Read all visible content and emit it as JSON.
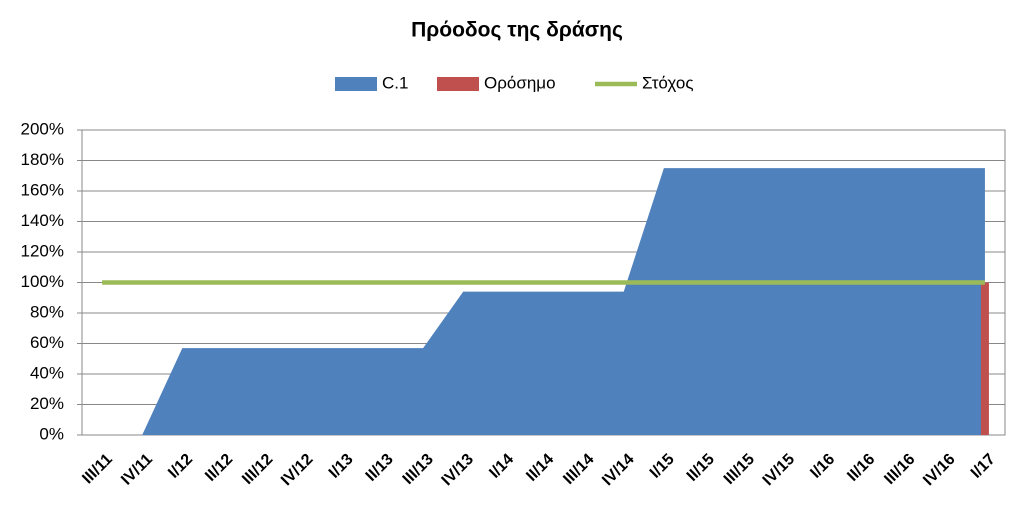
{
  "chart_data": {
    "type": "area",
    "title": "Πρόοδος της δράσης",
    "categories": [
      "III/11",
      "IV/11",
      "I/12",
      "II/12",
      "III/12",
      "IV/12",
      "I/13",
      "II/13",
      "III/13",
      "IV/13",
      "I/14",
      "II/14",
      "III/14",
      "IV/14",
      "I/15",
      "II/15",
      "III/15",
      "IV/15",
      "I/16",
      "II/16",
      "III/16",
      "IV/16",
      "I/17"
    ],
    "series": [
      {
        "name": "C.1",
        "type": "area",
        "color": "#4f81bd",
        "values": [
          0,
          0,
          57,
          57,
          57,
          57,
          57,
          57,
          57,
          94,
          94,
          94,
          94,
          94,
          175,
          175,
          175,
          175,
          175,
          175,
          175,
          175,
          175
        ]
      },
      {
        "name": "Ορόσημο",
        "type": "bar",
        "color": "#c0504d",
        "values": [
          null,
          null,
          null,
          null,
          null,
          null,
          null,
          null,
          null,
          null,
          null,
          null,
          null,
          null,
          null,
          null,
          null,
          null,
          null,
          null,
          null,
          null,
          100
        ]
      },
      {
        "name": "Στόχος",
        "type": "line",
        "color": "#9bbb59",
        "values": [
          100,
          100,
          100,
          100,
          100,
          100,
          100,
          100,
          100,
          100,
          100,
          100,
          100,
          100,
          100,
          100,
          100,
          100,
          100,
          100,
          100,
          100,
          100
        ]
      }
    ],
    "ylim": [
      0,
      200
    ],
    "yticks": [
      {
        "value": 0,
        "label": "0%"
      },
      {
        "value": 20,
        "label": "20%"
      },
      {
        "value": 40,
        "label": "40%"
      },
      {
        "value": 60,
        "label": "60%"
      },
      {
        "value": 80,
        "label": "80%"
      },
      {
        "value": 100,
        "label": "100%"
      },
      {
        "value": 120,
        "label": "120%"
      },
      {
        "value": 140,
        "label": "140%"
      },
      {
        "value": 160,
        "label": "160%"
      },
      {
        "value": 180,
        "label": "180%"
      },
      {
        "value": 200,
        "label": "200%"
      }
    ],
    "grid": true
  }
}
